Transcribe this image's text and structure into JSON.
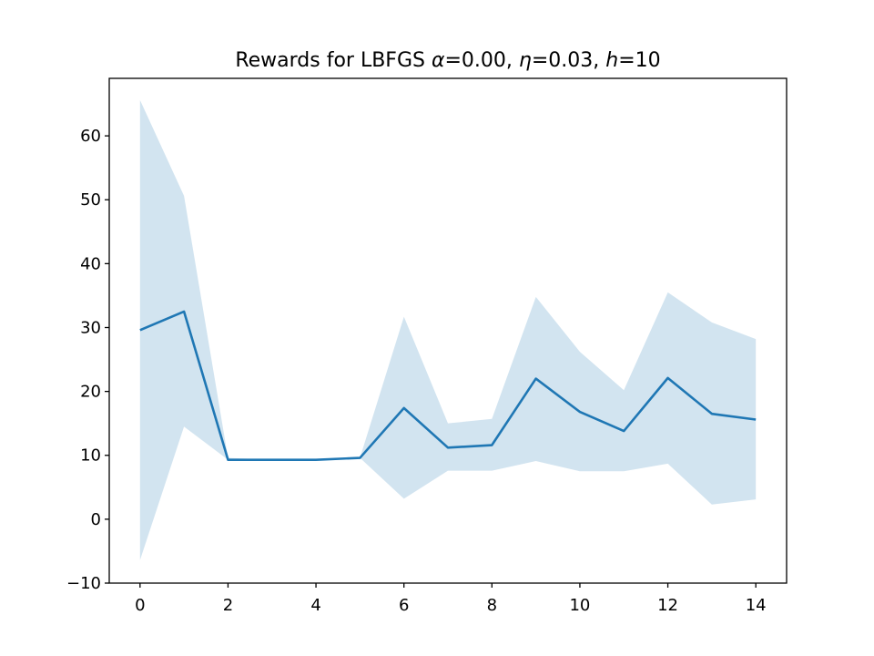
{
  "chart_data": {
    "type": "line",
    "title": "Rewards for LBFGS α = 0.00, η = 0.03, h = 10",
    "title_parts": {
      "prefix": "Rewards for LBFGS ",
      "alpha_symbol": "α",
      "alpha_value": "0.00",
      "eta_symbol": "η",
      "eta_value": "0.03",
      "h_symbol": "h",
      "h_value": "10"
    },
    "xlabel": "",
    "ylabel": "",
    "xlim": [
      -0.7,
      14.7
    ],
    "ylim": [
      -10,
      69
    ],
    "xticks": [
      0,
      2,
      4,
      6,
      8,
      10,
      12,
      14
    ],
    "xtick_labels": [
      "0",
      "2",
      "4",
      "6",
      "8",
      "10",
      "12",
      "14"
    ],
    "yticks": [
      -10,
      0,
      10,
      20,
      30,
      40,
      50,
      60
    ],
    "ytick_labels": [
      "−10",
      "0",
      "10",
      "20",
      "30",
      "40",
      "50",
      "60"
    ],
    "grid": false,
    "legend": "none",
    "colors": {
      "line": "#1f77b4",
      "band": "#1f77b4",
      "band_opacity": 0.2,
      "axes": "#000000"
    },
    "x": [
      0,
      1,
      2,
      3,
      4,
      5,
      6,
      7,
      8,
      9,
      10,
      11,
      12,
      13,
      14
    ],
    "series": [
      {
        "values": [
          29.6,
          32.5,
          9.3,
          9.3,
          9.3,
          9.6,
          17.4,
          11.2,
          11.6,
          22.0,
          16.8,
          13.8,
          22.1,
          16.5,
          15.6
        ],
        "upper": [
          65.6,
          50.6,
          9.6,
          9.3,
          9.3,
          9.6,
          31.7,
          15.0,
          15.7,
          34.8,
          26.2,
          20.2,
          35.5,
          30.8,
          28.2
        ],
        "lower": [
          -6.4,
          14.5,
          9.3,
          9.3,
          9.3,
          9.6,
          3.2,
          7.6,
          7.6,
          9.1,
          7.5,
          7.5,
          8.7,
          2.3,
          3.1
        ]
      }
    ]
  }
}
